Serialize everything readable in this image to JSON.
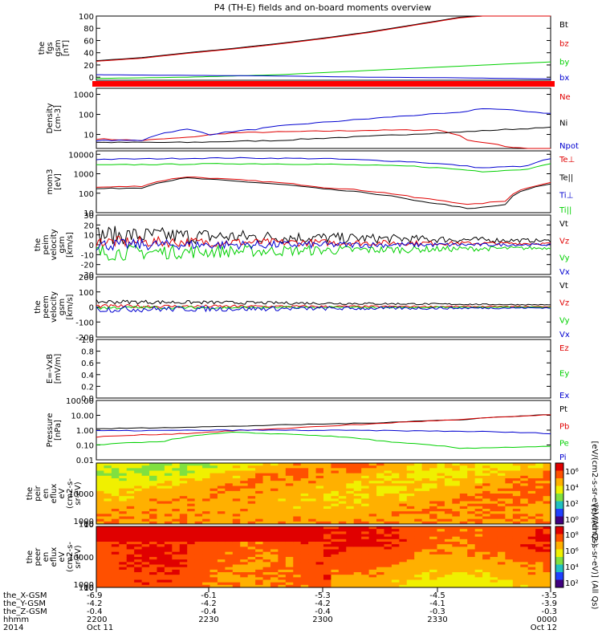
{
  "title": "P4 (TH-E) fields and on-board moments overview",
  "colors": {
    "black": "#000000",
    "red": "#e00000",
    "green": "#00d000",
    "blue": "#0000d0"
  },
  "chart_data": [
    {
      "type": "line",
      "panel": "fgs",
      "ylabel": [
        "the",
        "fgs",
        "gsm",
        "[nT]"
      ],
      "ylim": [
        -5,
        100
      ],
      "yticks": [
        "100",
        "80",
        "60",
        "40",
        "20",
        "0"
      ],
      "series": [
        {
          "name": "Bt",
          "color": "black",
          "points": [
            [
              0,
              27
            ],
            [
              0.1,
              32
            ],
            [
              0.2,
              40
            ],
            [
              0.3,
              47
            ],
            [
              0.4,
              55
            ],
            [
              0.5,
              64
            ],
            [
              0.6,
              74
            ],
            [
              0.7,
              86
            ],
            [
              0.8,
              98
            ],
            [
              0.85,
              100
            ]
          ]
        },
        {
          "name": "bz",
          "color": "red",
          "points": [
            [
              0,
              26
            ],
            [
              0.1,
              31
            ],
            [
              0.2,
              39
            ],
            [
              0.3,
              46
            ],
            [
              0.4,
              54
            ],
            [
              0.5,
              63
            ],
            [
              0.6,
              73
            ],
            [
              0.7,
              85
            ],
            [
              0.8,
              97
            ],
            [
              0.85,
              100
            ]
          ]
        },
        {
          "name": "by",
          "color": "green",
          "points": [
            [
              0,
              -2
            ],
            [
              0.2,
              0
            ],
            [
              0.4,
              4
            ],
            [
              0.6,
              11
            ],
            [
              0.8,
              18
            ],
            [
              1,
              25
            ]
          ]
        },
        {
          "name": "bx",
          "color": "blue",
          "points": [
            [
              0,
              4
            ],
            [
              0.2,
              3
            ],
            [
              0.4,
              2
            ],
            [
              0.6,
              0
            ],
            [
              0.8,
              -1
            ],
            [
              1,
              -3
            ]
          ]
        }
      ]
    },
    {
      "type": "line",
      "panel": "density",
      "log": true,
      "ylabel": [
        "Density",
        "[cm-3]"
      ],
      "ylim": [
        2,
        2000
      ],
      "yticks": [
        "1000",
        "100",
        "10"
      ],
      "series": [
        {
          "name": "Ne",
          "color": "red"
        },
        {
          "name": "Ni",
          "color": "black"
        },
        {
          "name": "Npot",
          "color": "blue"
        }
      ]
    },
    {
      "type": "line",
      "panel": "temperature",
      "log": true,
      "ylabel": [
        "mom3",
        "[eV]"
      ],
      "ylim": [
        10,
        15000
      ],
      "yticks": [
        "10000",
        "1000",
        "100",
        "10"
      ],
      "series": [
        {
          "name": "Te⊥",
          "color": "red"
        },
        {
          "name": "Te||",
          "color": "black"
        },
        {
          "name": "Ti⊥",
          "color": "blue"
        },
        {
          "name": "Ti||",
          "color": "green"
        }
      ]
    },
    {
      "type": "line",
      "panel": "peim-velocity",
      "ylabel": [
        "the",
        "peim",
        "velocity",
        "gsm",
        "[km/s]"
      ],
      "ylim": [
        -30,
        30
      ],
      "yticks": [
        "30",
        "20",
        "10",
        "0",
        "-10",
        "-20",
        "-30"
      ],
      "series": [
        {
          "name": "Vt",
          "color": "black"
        },
        {
          "name": "Vz",
          "color": "red"
        },
        {
          "name": "Vy",
          "color": "green"
        },
        {
          "name": "Vx",
          "color": "blue"
        }
      ]
    },
    {
      "type": "line",
      "panel": "peem-velocity",
      "ylabel": [
        "the",
        "peem",
        "velocity",
        "gsm",
        "[km/s]"
      ],
      "ylim": [
        -200,
        200
      ],
      "yticks": [
        "200",
        "100",
        "0",
        "-100",
        "-200"
      ],
      "series": [
        {
          "name": "Vt",
          "color": "black"
        },
        {
          "name": "Vz",
          "color": "red"
        },
        {
          "name": "Vy",
          "color": "green"
        },
        {
          "name": "Vx",
          "color": "blue"
        }
      ]
    },
    {
      "type": "line",
      "panel": "efield",
      "ylabel": [
        "E=-VxB",
        "[mV/m]"
      ],
      "ylim": [
        0,
        1
      ],
      "yticks": [
        "1.0",
        "0.8",
        "0.6",
        "0.4",
        "0.2",
        "0.0"
      ],
      "series": [
        {
          "name": "Ez",
          "color": "red"
        },
        {
          "name": "Ey",
          "color": "green"
        },
        {
          "name": "Ex",
          "color": "blue"
        }
      ]
    },
    {
      "type": "line",
      "panel": "pressure",
      "log": true,
      "ylabel": [
        "Pressure",
        "[nPa]"
      ],
      "ylim": [
        0.01,
        100
      ],
      "yticks": [
        "100.00",
        "10.00",
        "1.00",
        "0.10",
        "0.01"
      ],
      "series": [
        {
          "name": "Pt",
          "color": "black"
        },
        {
          "name": "Pb",
          "color": "red"
        },
        {
          "name": "Pe",
          "color": "green"
        },
        {
          "name": "Pi",
          "color": "blue"
        }
      ]
    },
    {
      "type": "heatmap",
      "panel": "peir",
      "ylabel": [
        "the",
        "peir",
        "en",
        "eflux",
        "eV",
        "(cm2-s-",
        "sr-eV)"
      ],
      "ylim": [
        8,
        20000
      ],
      "yticks": [
        "10000",
        "1000",
        "100",
        "10"
      ],
      "colorbar": {
        "label": "[eV/(cm2-s-sr-eV)] (All Qs)",
        "ticks": [
          "10⁶",
          "10⁴",
          "10²",
          "10⁰"
        ]
      }
    },
    {
      "type": "heatmap",
      "panel": "peer",
      "ylabel": [
        "the",
        "peer",
        "en",
        "eflux",
        "eV",
        "(cm2-s-",
        "sr-eV)"
      ],
      "ylim": [
        8,
        20000
      ],
      "yticks": [
        "10000",
        "1000",
        "100",
        "10"
      ],
      "colorbar": {
        "label": "[eV/(cm2-s-sr-eV)] (All Qs)",
        "ticks": [
          "10⁸",
          "10⁶",
          "10⁴",
          "10²"
        ]
      }
    }
  ],
  "time_axis": {
    "rows": [
      {
        "label": "the_X-GSM",
        "values": [
          "-6.9",
          "-6.1",
          "-5.3",
          "-4.5",
          "-3.5"
        ]
      },
      {
        "label": "the_Y-GSM",
        "values": [
          "-4.2",
          "-4.2",
          "-4.2",
          "-4.1",
          "-3.9"
        ]
      },
      {
        "label": "the_Z-GSM",
        "values": [
          "-0.4",
          "-0.4",
          "-0.4",
          "-0.3",
          "-0.3"
        ]
      },
      {
        "label": "hhmm",
        "values": [
          "2200",
          "2230",
          "2300",
          "2330",
          "0000"
        ]
      },
      {
        "label": "2014",
        "values": [
          "Oct 11",
          "",
          "",
          "",
          "Oct 12"
        ]
      }
    ]
  }
}
